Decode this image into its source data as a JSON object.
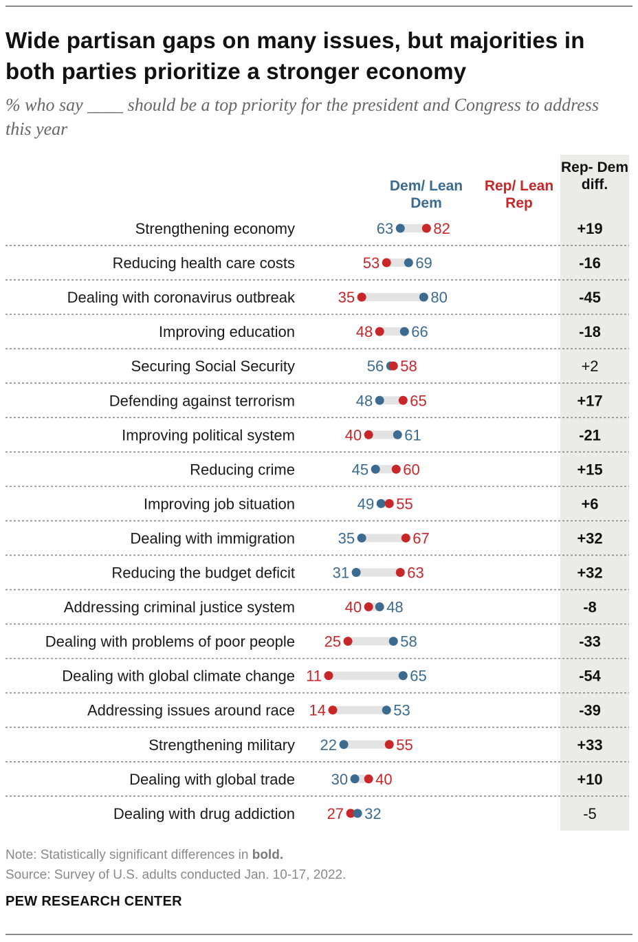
{
  "title": "Wide partisan gaps on many issues, but majorities in both parties prioritize a stronger economy",
  "subtitle": "% who say ____ should be a top priority for the president and Congress to address this year",
  "colors": {
    "dem": "#3d6b8f",
    "rep": "#c8272a",
    "bar": "#e3e3e3",
    "diff_bg": "#ecece6"
  },
  "chart_data": {
    "type": "dot",
    "headers": {
      "dem": "Dem/ Lean Dem",
      "rep": "Rep/ Lean Rep",
      "diff": "Rep- Dem diff."
    },
    "series": [
      {
        "name": "Dem/Lean Dem"
      },
      {
        "name": "Rep/Lean Rep"
      }
    ],
    "rows": [
      {
        "label": "Strengthening economy",
        "dem": 63,
        "rep": 82,
        "diff": "+19",
        "bold": true
      },
      {
        "label": "Reducing health care costs",
        "dem": 69,
        "rep": 53,
        "diff": "-16",
        "bold": true
      },
      {
        "label": "Dealing with coronavirus outbreak",
        "dem": 80,
        "rep": 35,
        "diff": "-45",
        "bold": true
      },
      {
        "label": "Improving education",
        "dem": 66,
        "rep": 48,
        "diff": "-18",
        "bold": true
      },
      {
        "label": "Securing Social Security",
        "dem": 56,
        "rep": 58,
        "diff": "+2",
        "bold": false
      },
      {
        "label": "Defending against terrorism",
        "dem": 48,
        "rep": 65,
        "diff": "+17",
        "bold": true
      },
      {
        "label": "Improving political system",
        "dem": 61,
        "rep": 40,
        "diff": "-21",
        "bold": true
      },
      {
        "label": "Reducing crime",
        "dem": 45,
        "rep": 60,
        "diff": "+15",
        "bold": true
      },
      {
        "label": "Improving job situation",
        "dem": 49,
        "rep": 55,
        "diff": "+6",
        "bold": true
      },
      {
        "label": "Dealing with immigration",
        "dem": 35,
        "rep": 67,
        "diff": "+32",
        "bold": true
      },
      {
        "label": "Reducing the budget deficit",
        "dem": 31,
        "rep": 63,
        "diff": "+32",
        "bold": true
      },
      {
        "label": "Addressing criminal justice system",
        "dem": 48,
        "rep": 40,
        "diff": "-8",
        "bold": true
      },
      {
        "label": "Dealing with problems of poor people",
        "dem": 58,
        "rep": 25,
        "diff": "-33",
        "bold": true
      },
      {
        "label": "Dealing with global climate change",
        "dem": 65,
        "rep": 11,
        "diff": "-54",
        "bold": true
      },
      {
        "label": "Addressing issues around race",
        "dem": 53,
        "rep": 14,
        "diff": "-39",
        "bold": true
      },
      {
        "label": "Strengthening military",
        "dem": 22,
        "rep": 55,
        "diff": "+33",
        "bold": true
      },
      {
        "label": "Dealing with global trade",
        "dem": 30,
        "rep": 40,
        "diff": "+10",
        "bold": true
      },
      {
        "label": "Dealing with drug addiction",
        "dem": 32,
        "rep": 27,
        "diff": "-5",
        "bold": false
      }
    ]
  },
  "note_prefix": "Note: Statistically significant differences in",
  "note_bold": "bold.",
  "source": "Source: Survey of U.S. adults conducted Jan. 10-17, 2022.",
  "brand": "PEW RESEARCH CENTER"
}
